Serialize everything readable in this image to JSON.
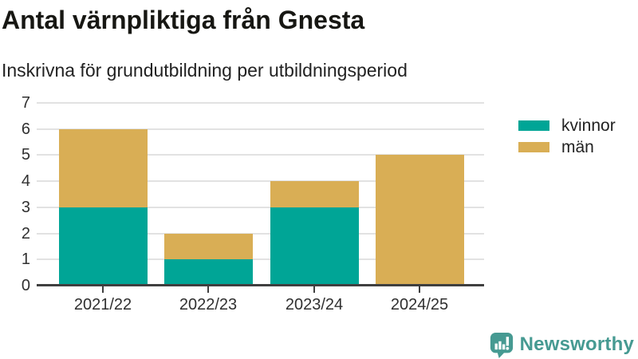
{
  "chart_data": {
    "type": "bar",
    "stacked": true,
    "title": "Antal värnpliktiga från Gnesta",
    "subtitle": "Inskrivna för grundutbildning per utbildningsperiod",
    "categories": [
      "2021/22",
      "2022/23",
      "2023/24",
      "2024/25"
    ],
    "series": [
      {
        "name": "kvinnor",
        "color": "#00a596",
        "values": [
          3,
          1,
          3,
          0
        ]
      },
      {
        "name": "män",
        "color": "#d9ae55",
        "values": [
          3,
          1,
          1,
          5
        ]
      }
    ],
    "totals": [
      6,
      2,
      4,
      5
    ],
    "xlabel": "",
    "ylabel": "",
    "ylim": [
      0,
      7
    ],
    "yticks": [
      0,
      1,
      2,
      3,
      4,
      5,
      6,
      7
    ],
    "grid": true,
    "legend_position": "right"
  },
  "colors": {
    "axis": "#3f3f3f",
    "grid": "#e2e2e2",
    "text": "#171713",
    "tick_text": "#303030",
    "brand": "#469a92"
  },
  "footer": {
    "brand": "Newsworthy"
  }
}
